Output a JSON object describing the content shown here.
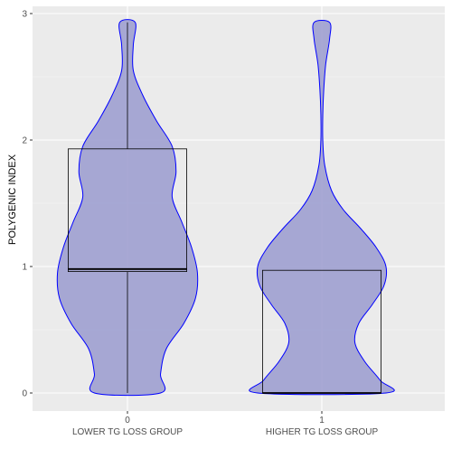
{
  "chart_data": {
    "type": "violin",
    "xlabel": "",
    "ylabel": "POLYGENIC INDEX",
    "ylim": [
      -0.1,
      3.0
    ],
    "yticks": [
      0,
      1,
      2,
      3
    ],
    "grid": true,
    "colors": {
      "panel_background": "#ebebeb",
      "grid_major": "#ffffff",
      "grid_minor": "#f5f5f5",
      "violin_fill": "#9fa0d0",
      "violin_stroke": "#0000ff",
      "box_stroke": "#000000"
    },
    "groups": [
      {
        "tick_label": "0",
        "category_label": "LOWER TG LOSS GROUP",
        "box": {
          "q1": 0.96,
          "median": 0.98,
          "q3": 1.93,
          "whisker_low": 0.0,
          "whisker_high": 2.93
        },
        "density_profile": [
          {
            "y": 0.0,
            "half_width": 0.17
          },
          {
            "y": 0.15,
            "half_width": 0.17
          },
          {
            "y": 0.35,
            "half_width": 0.2
          },
          {
            "y": 0.55,
            "half_width": 0.29
          },
          {
            "y": 0.75,
            "half_width": 0.35
          },
          {
            "y": 0.95,
            "half_width": 0.36
          },
          {
            "y": 1.15,
            "half_width": 0.33
          },
          {
            "y": 1.35,
            "half_width": 0.28
          },
          {
            "y": 1.55,
            "half_width": 0.23
          },
          {
            "y": 1.75,
            "half_width": 0.25
          },
          {
            "y": 1.95,
            "half_width": 0.23
          },
          {
            "y": 2.15,
            "half_width": 0.15
          },
          {
            "y": 2.35,
            "half_width": 0.08
          },
          {
            "y": 2.55,
            "half_width": 0.03
          },
          {
            "y": 2.75,
            "half_width": 0.03
          },
          {
            "y": 2.93,
            "half_width": 0.04
          }
        ]
      },
      {
        "tick_label": "1",
        "category_label": "HIGHER TG LOSS GROUP",
        "box": {
          "q1": 0.0,
          "median": 0.0,
          "q3": 0.97,
          "whisker_low": 0.0,
          "whisker_high": 0.97
        },
        "density_profile": [
          {
            "y": 0.0,
            "half_width": 0.33
          },
          {
            "y": 0.1,
            "half_width": 0.3
          },
          {
            "y": 0.25,
            "half_width": 0.22
          },
          {
            "y": 0.4,
            "half_width": 0.17
          },
          {
            "y": 0.55,
            "half_width": 0.19
          },
          {
            "y": 0.7,
            "half_width": 0.26
          },
          {
            "y": 0.85,
            "half_width": 0.32
          },
          {
            "y": 1.0,
            "half_width": 0.33
          },
          {
            "y": 1.15,
            "half_width": 0.28
          },
          {
            "y": 1.3,
            "half_width": 0.2
          },
          {
            "y": 1.45,
            "half_width": 0.11
          },
          {
            "y": 1.6,
            "half_width": 0.05
          },
          {
            "y": 1.8,
            "half_width": 0.015
          },
          {
            "y": 2.0,
            "half_width": 0.005
          },
          {
            "y": 2.2,
            "half_width": 0.005
          },
          {
            "y": 2.4,
            "half_width": 0.01
          },
          {
            "y": 2.6,
            "half_width": 0.02
          },
          {
            "y": 2.8,
            "half_width": 0.04
          },
          {
            "y": 2.93,
            "half_width": 0.04
          }
        ]
      }
    ]
  }
}
